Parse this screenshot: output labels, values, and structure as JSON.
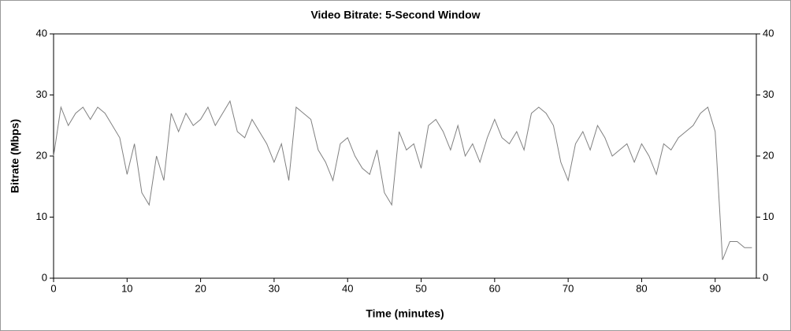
{
  "chart_data": {
    "type": "line",
    "title": "Video Bitrate: 5-Second Window",
    "x_label": "Time (minutes)",
    "y_label": "Bitrate (Mbps)",
    "x": [
      0,
      1,
      2,
      3,
      4,
      5,
      6,
      7,
      8,
      9,
      10,
      11,
      12,
      13,
      14,
      15,
      16,
      17,
      18,
      19,
      20,
      21,
      22,
      23,
      24,
      25,
      26,
      27,
      28,
      29,
      30,
      31,
      32,
      33,
      34,
      35,
      36,
      37,
      38,
      39,
      40,
      41,
      42,
      43,
      44,
      45,
      46,
      47,
      48,
      49,
      50,
      51,
      52,
      53,
      54,
      55,
      56,
      57,
      58,
      59,
      60,
      61,
      62,
      63,
      64,
      65,
      66,
      67,
      68,
      69,
      70,
      71,
      72,
      73,
      74,
      75,
      76,
      77,
      78,
      79,
      80,
      81,
      82,
      83,
      84,
      85,
      86,
      87,
      88,
      89,
      90,
      91,
      92,
      93,
      94,
      95
    ],
    "series": [
      {
        "name": "Bitrate",
        "color": "#808080",
        "values": [
          20,
          28,
          25,
          27,
          28,
          26,
          28,
          27,
          25,
          23,
          17,
          22,
          14,
          12,
          20,
          16,
          27,
          24,
          27,
          25,
          26,
          28,
          25,
          27,
          29,
          24,
          23,
          26,
          24,
          22,
          19,
          22,
          16,
          28,
          27,
          26,
          21,
          19,
          16,
          22,
          23,
          20,
          18,
          17,
          21,
          14,
          12,
          24,
          21,
          22,
          18,
          25,
          26,
          24,
          21,
          25,
          20,
          22,
          19,
          23,
          26,
          23,
          22,
          24,
          21,
          27,
          28,
          27,
          25,
          19,
          16,
          22,
          24,
          21,
          25,
          23,
          20,
          21,
          22,
          19,
          22,
          20,
          17,
          22,
          21,
          23,
          24,
          25,
          27,
          28,
          24,
          3,
          6,
          6,
          5,
          5
        ]
      }
    ],
    "xlim": [
      0,
      95.6
    ],
    "ylim": [
      0,
      40
    ],
    "xticks": [
      0,
      10,
      20,
      30,
      40,
      50,
      60,
      70,
      80,
      90
    ],
    "yticks": [
      0,
      10,
      20,
      30,
      40
    ],
    "grid": false
  }
}
